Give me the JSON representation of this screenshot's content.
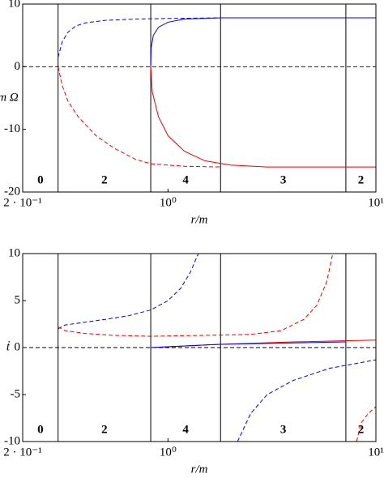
{
  "chart_data": [
    {
      "type": "line",
      "ylabel": "m Ω",
      "xlabel": "r/m",
      "xscale": "log",
      "xlim": [
        0.2,
        10
      ],
      "xticks": [
        {
          "value": 0.2,
          "label": "2 · 10⁻¹"
        },
        {
          "value": 1,
          "label": "10⁰"
        },
        {
          "value": 10,
          "label": "10¹"
        }
      ],
      "ylim": [
        -20,
        10
      ],
      "yticks": [
        10,
        0,
        -10,
        -20
      ],
      "hline": 0,
      "vlines": [
        0.296,
        0.826,
        1.79,
        7.17
      ],
      "regions": [
        "0",
        "2",
        "4",
        "3",
        "2"
      ],
      "series": [
        {
          "color": "#0000ee",
          "dash": true,
          "x": [
            0.296,
            0.31,
            0.33,
            0.36,
            0.4,
            0.5,
            0.7,
            1,
            1.79
          ],
          "values": [
            1.5,
            4,
            5.5,
            6.5,
            7,
            7.4,
            7.6,
            7.7,
            7.8
          ]
        },
        {
          "color": "#ee0000",
          "dash": true,
          "x": [
            0.296,
            0.31,
            0.33,
            0.37,
            0.45,
            0.55,
            0.7,
            0.83,
            1.2,
            1.79
          ],
          "values": [
            0,
            -3,
            -5.5,
            -8,
            -11,
            -13,
            -14.8,
            -15.5,
            -15.9,
            -16
          ]
        },
        {
          "color": "#0000ee",
          "dash": false,
          "x": [
            0.826,
            0.83,
            0.85,
            0.9,
            1,
            1.2,
            1.79,
            10
          ],
          "values": [
            0,
            3,
            5,
            6.3,
            7.1,
            7.6,
            7.8,
            7.8
          ]
        },
        {
          "color": "#ee0000",
          "dash": false,
          "x": [
            0.826,
            0.84,
            0.9,
            1,
            1.2,
            1.5,
            2,
            3,
            10
          ],
          "values": [
            0,
            -4,
            -8,
            -11,
            -13.5,
            -15,
            -15.7,
            -16,
            -16
          ]
        }
      ]
    },
    {
      "type": "line",
      "ylabel": "ṫ",
      "xlabel": "r/m",
      "xscale": "log",
      "xlim": [
        0.2,
        10
      ],
      "xticks": [
        {
          "value": 0.2,
          "label": "2 · 10⁻¹"
        },
        {
          "value": 1,
          "label": "10⁰"
        },
        {
          "value": 10,
          "label": "10¹"
        }
      ],
      "ylim": [
        -10,
        10
      ],
      "yticks": [
        10,
        5,
        0,
        -5,
        -10
      ],
      "hline": 0,
      "vlines": [
        0.296,
        0.826,
        1.79,
        7.17
      ],
      "regions": [
        "0",
        "2",
        "4",
        "3",
        "2"
      ],
      "series": [
        {
          "color": "#0000ee",
          "dash": true,
          "x": [
            0.296,
            0.32,
            0.4,
            0.5,
            0.65,
            0.826,
            1,
            1.15,
            1.28,
            1.4
          ],
          "values": [
            2,
            2.4,
            2.7,
            3,
            3.4,
            4,
            5,
            6.3,
            8,
            10
          ]
        },
        {
          "color": "#ee0000",
          "dash": true,
          "x": [
            0.296,
            0.32,
            0.4,
            0.55,
            0.826,
            1.5,
            2.5,
            3.5,
            4.5,
            5.2,
            5.8,
            6.2
          ],
          "values": [
            2.2,
            1.8,
            1.5,
            1.3,
            1.2,
            1.3,
            1.4,
            1.8,
            3,
            4.5,
            7,
            10
          ]
        },
        {
          "color": "#ee0000",
          "dash": false,
          "x": [
            0.826,
            1.79,
            4,
            10
          ],
          "values": [
            0,
            0.35,
            0.6,
            0.8
          ]
        },
        {
          "color": "#0000ee",
          "dash": false,
          "x": [
            0.826,
            1.79,
            7.17
          ],
          "values": [
            0,
            0.35,
            0.6
          ]
        },
        {
          "color": "#0000ee",
          "dash": true,
          "x": [
            2.16,
            2.5,
            3,
            4,
            6,
            8,
            10
          ],
          "values": [
            -10,
            -7,
            -5,
            -3.5,
            -2.2,
            -1.7,
            -1.3
          ]
        },
        {
          "color": "#ee0000",
          "dash": true,
          "x": [
            8.07,
            8.5,
            9.2,
            10
          ],
          "values": [
            -10,
            -8,
            -7,
            -6.3
          ]
        }
      ]
    }
  ]
}
